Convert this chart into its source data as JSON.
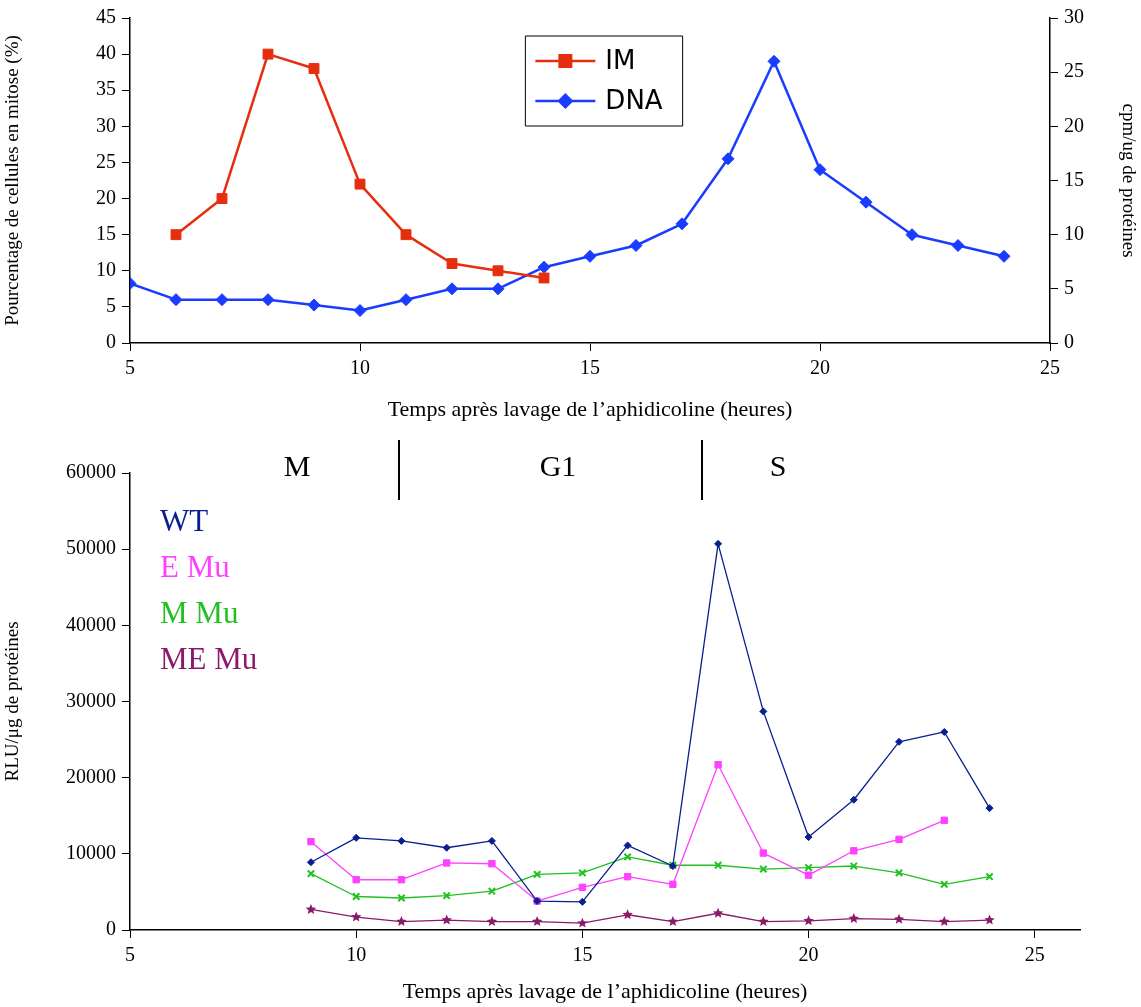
{
  "chart_data": [
    {
      "type": "line",
      "xlabel": "Temps après lavage de l’aphidicoline (heures)",
      "ylabel": "Pourcentage de cellules en mitose (%)",
      "y2label": "cpm/ug de protéines",
      "xlim": [
        5,
        25
      ],
      "xticks": [
        5,
        10,
        15,
        20,
        25
      ],
      "ylim": [
        0,
        45
      ],
      "yticks": [
        0,
        5,
        10,
        15,
        20,
        25,
        30,
        35,
        40,
        45
      ],
      "y2lim": [
        0,
        30
      ],
      "y2ticks": [
        0,
        5,
        10,
        15,
        20,
        25,
        30
      ],
      "grid": false,
      "legend": "top",
      "series": [
        {
          "name": "IM",
          "color": "#e62e0e",
          "marker": "square",
          "x": [
            6,
            7,
            8,
            9,
            10,
            11,
            12,
            13,
            14
          ],
          "values": [
            15,
            20,
            40,
            38,
            22,
            15,
            11,
            10,
            9
          ]
        },
        {
          "name": "DNA",
          "color": "#1a3cff",
          "marker": "diamond",
          "axis": "y2",
          "x": [
            5,
            6,
            7,
            8,
            9,
            10,
            11,
            12,
            13,
            14,
            15,
            16,
            17,
            18,
            19,
            20,
            21,
            22,
            23,
            24
          ],
          "values": [
            5.5,
            4,
            4,
            4,
            3.5,
            3,
            4,
            5,
            5,
            7,
            8,
            9,
            11,
            17,
            26,
            16,
            13,
            10,
            9,
            8
          ]
        }
      ]
    },
    {
      "type": "line",
      "xlabel": "Temps après lavage de l’aphidicoline (heures)",
      "ylabel": "RLU/μg de protéines",
      "xlim": [
        5,
        26
      ],
      "xticks": [
        5,
        10,
        15,
        20,
        25
      ],
      "ylim": [
        0,
        60000
      ],
      "yticks": [
        0,
        10000,
        20000,
        30000,
        40000,
        50000,
        60000
      ],
      "grid": false,
      "legend": "top left",
      "annotations": [
        "M",
        "G1",
        "S"
      ],
      "series": [
        {
          "name": "WT",
          "color": "#0a1f8f",
          "marker": "diamond",
          "x": [
            9,
            10,
            11,
            12,
            13,
            14,
            15,
            16,
            17,
            18,
            19,
            20,
            21,
            22,
            23,
            24
          ],
          "values": [
            8900,
            12100,
            11700,
            10800,
            11700,
            3800,
            3700,
            11100,
            8400,
            50700,
            28700,
            12200,
            17100,
            24700,
            26000,
            16000
          ]
        },
        {
          "name": "E Mu",
          "color": "#ff40ff",
          "marker": "square",
          "x": [
            9,
            10,
            11,
            12,
            13,
            14,
            15,
            16,
            17,
            18,
            19,
            20,
            21,
            22,
            23
          ],
          "values": [
            11600,
            6600,
            6600,
            8800,
            8700,
            3800,
            5600,
            7000,
            6000,
            21700,
            10100,
            7200,
            10400,
            11900,
            14400
          ]
        },
        {
          "name": "M Mu",
          "color": "#22c022",
          "marker": "cross",
          "x": [
            9,
            10,
            11,
            12,
            13,
            14,
            15,
            16,
            17,
            18,
            19,
            20,
            21,
            22,
            23,
            24
          ],
          "values": [
            7400,
            4400,
            4200,
            4500,
            5100,
            7300,
            7500,
            9600,
            8500,
            8500,
            8000,
            8200,
            8400,
            7500,
            6000,
            7000
          ]
        },
        {
          "name": "ME Mu",
          "color": "#8b1a6a",
          "marker": "star",
          "x": [
            9,
            10,
            11,
            12,
            13,
            14,
            15,
            16,
            17,
            18,
            19,
            20,
            21,
            22,
            23,
            24
          ],
          "values": [
            2700,
            1700,
            1100,
            1300,
            1100,
            1100,
            900,
            2000,
            1100,
            2200,
            1100,
            1200,
            1500,
            1400,
            1100,
            1300
          ]
        }
      ]
    }
  ]
}
